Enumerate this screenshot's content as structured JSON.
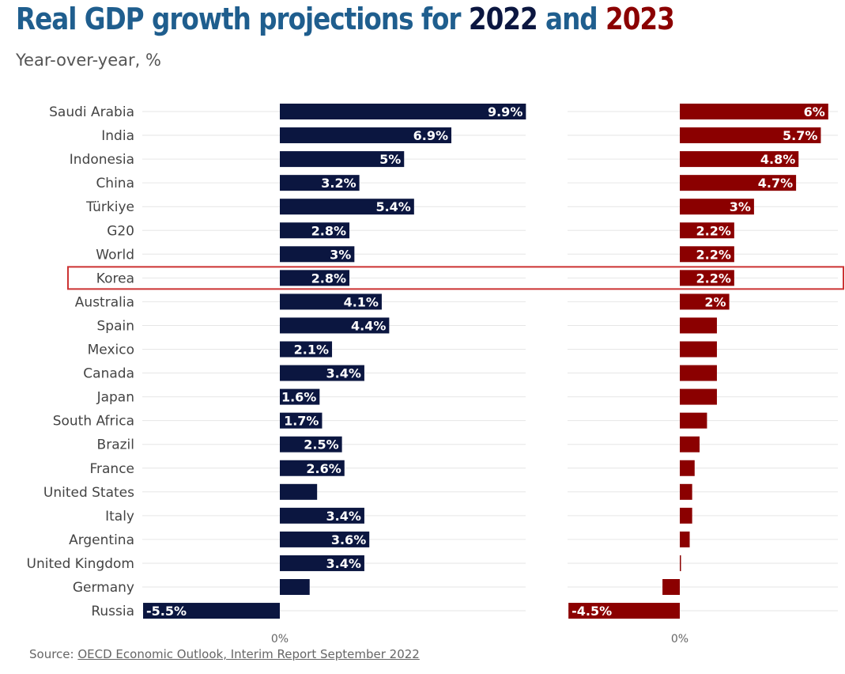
{
  "header": {
    "title_prefix": "Real GDP growth projections for ",
    "year1": "2022",
    "title_and": " and ",
    "year2": "2023",
    "subtitle": "Year-over-year, %"
  },
  "source": {
    "label": "Source: ",
    "link_text": "OECD Economic Outlook, Interim Report September 2022"
  },
  "colors": {
    "series_2022": "#0b1640",
    "series_2023": "#8b0000",
    "highlight": "#cc3333",
    "gridline": "#e6e6e6"
  },
  "highlight_category": "Korea",
  "chart_data": {
    "type": "bar",
    "orientation": "horizontal",
    "categories": [
      "Saudi Arabia",
      "India",
      "Indonesia",
      "China",
      "Türkiye",
      "G20",
      "World",
      "Korea",
      "Australia",
      "Spain",
      "Mexico",
      "Canada",
      "Japan",
      "South Africa",
      "Brazil",
      "France",
      "United States",
      "Italy",
      "Argentina",
      "United Kingdom",
      "Germany",
      "Russia"
    ],
    "series": [
      {
        "year": "2022",
        "values": [
          9.9,
          6.9,
          5,
          3.2,
          5.4,
          2.8,
          3,
          2.8,
          4.1,
          4.4,
          2.1,
          3.4,
          1.6,
          1.7,
          2.5,
          2.6,
          1.5,
          3.4,
          3.6,
          3.4,
          1.2,
          -5.5
        ],
        "labels": [
          "9.9%",
          "6.9%",
          "5%",
          "3.2%",
          "5.4%",
          "2.8%",
          "3%",
          "2.8%",
          "4.1%",
          "4.4%",
          "2.1%",
          "3.4%",
          "1.6%",
          "1.7%",
          "2.5%",
          "2.6%",
          "",
          "3.4%",
          "3.6%",
          "3.4%",
          "",
          "-5.5%"
        ]
      },
      {
        "year": "2023",
        "values": [
          6,
          5.7,
          4.8,
          4.7,
          3,
          2.2,
          2.2,
          2.2,
          2,
          1.5,
          1.5,
          1.5,
          1.5,
          1.1,
          0.8,
          0.6,
          0.5,
          0.5,
          0.4,
          0,
          -0.7,
          -4.5
        ],
        "labels": [
          "6%",
          "5.7%",
          "4.8%",
          "4.7%",
          "3%",
          "2.2%",
          "2.2%",
          "2.2%",
          "2%",
          "",
          "",
          "",
          "",
          "",
          "",
          "",
          "",
          "",
          "",
          "",
          "",
          "-4.5%"
        ]
      }
    ],
    "zero_tick_label": "0%"
  }
}
